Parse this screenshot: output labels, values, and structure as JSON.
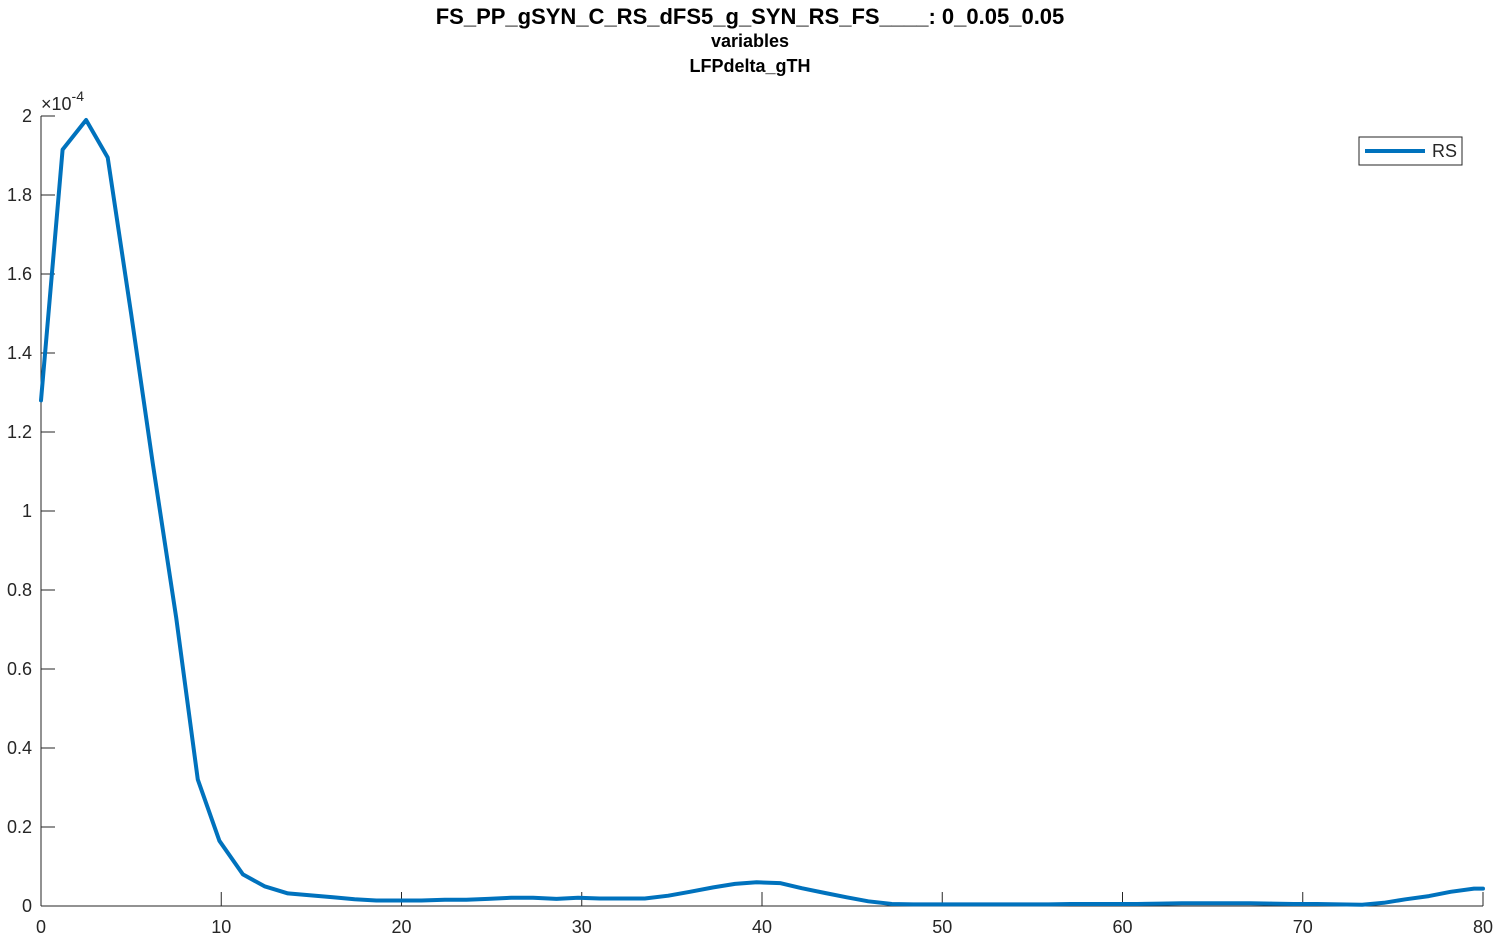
{
  "chart_data": {
    "type": "line",
    "title": "FS_PP_gSYN_C_RS_dFS5_g_SYN_RS_FS____: 0_0.05_0.05",
    "subtitle_lines": [
      "variables",
      "LFPdelta_gTH"
    ],
    "xlabel": "",
    "ylabel": "",
    "xlim": [
      0,
      80
    ],
    "ylim": [
      0,
      0.0002
    ],
    "y_exponent_label": {
      "base": "×10",
      "exponent": "-4"
    },
    "x_ticks": [
      "0",
      "10",
      "20",
      "30",
      "40",
      "50",
      "60",
      "70",
      "80"
    ],
    "y_ticks": [
      "0",
      "0.2",
      "0.4",
      "0.6",
      "0.8",
      "1",
      "1.2",
      "1.4",
      "1.6",
      "1.8",
      "2"
    ],
    "grid": false,
    "legend_position": "top-right",
    "series": [
      {
        "name": "RS",
        "color": "#0072BD",
        "x": [
          0,
          1.2,
          2.5,
          3.7,
          5,
          6.2,
          7.5,
          8.7,
          9.9,
          11.2,
          12.4,
          13.7,
          14.9,
          16.2,
          17.4,
          18.6,
          19.9,
          21.1,
          22.4,
          23.6,
          24.8,
          26.1,
          27.3,
          28.6,
          29.8,
          31,
          32.3,
          33.5,
          34.8,
          36,
          37.3,
          38.5,
          39.7,
          41,
          42.2,
          43.5,
          44.7,
          45.9,
          47.2,
          48.4,
          49.7,
          50.9,
          52.2,
          53.4,
          54.6,
          55.9,
          57.1,
          58.4,
          59.6,
          60.8,
          62.1,
          63.3,
          64.6,
          65.8,
          67.1,
          68.3,
          69.5,
          70.8,
          72,
          73.3,
          74.5,
          75.7,
          77,
          78.2,
          79.5,
          80
        ],
        "y": [
          0.000128,
          0.0001915,
          0.000199,
          0.0001895,
          0.00015,
          0.000112,
          7.3e-05,
          3.2e-05,
          1.65e-05,
          8e-06,
          5e-06,
          3.2e-06,
          2.7e-06,
          2.2e-06,
          1.7e-06,
          1.4e-06,
          1.4e-06,
          1.4e-06,
          1.6e-06,
          1.6e-06,
          1.8e-06,
          2.1e-06,
          2.1e-06,
          1.8e-06,
          2.1e-06,
          1.9e-06,
          1.9e-06,
          1.9e-06,
          2.6e-06,
          3.6e-06,
          4.7e-06,
          5.6e-06,
          6e-06,
          5.8e-06,
          4.5e-06,
          3.3e-06,
          2.2e-06,
          1.2e-06,
          5e-07,
          4e-07,
          4e-07,
          4e-07,
          4e-07,
          4e-07,
          4e-07,
          4e-07,
          5e-07,
          5e-07,
          5e-07,
          5e-07,
          6e-07,
          7e-07,
          7e-07,
          7e-07,
          7e-07,
          6e-07,
          5e-07,
          5e-07,
          4e-07,
          3e-07,
          8e-07,
          1.7e-06,
          2.5e-06,
          3.6e-06,
          4.4e-06,
          4.4e-06
        ]
      }
    ]
  }
}
